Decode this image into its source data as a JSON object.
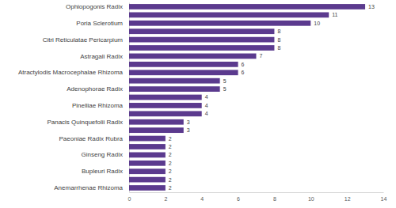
{
  "chart_data": {
    "type": "bar",
    "orientation": "horizontal",
    "data_labels": true,
    "grid": false,
    "color": "#5b3a8e",
    "categories": [
      "Ophiopogonis Radix",
      null,
      "Poria Sclerotium",
      null,
      "Citri Reticulatae Pericarpium",
      null,
      "Astragali Radix",
      null,
      "Atractylodis Macrocephalae Rhizoma",
      null,
      "Adenophorae Radix",
      null,
      "Pinelliae Rhizoma",
      null,
      "Panacis Quinquefolii Radix",
      null,
      "Paeoniae Radix Rubra",
      null,
      "Ginseng Radix",
      null,
      "Bupleuri Radix",
      null,
      "Anemarrhenae Rhizoma"
    ],
    "values": [
      13,
      11,
      10,
      8,
      8,
      8,
      7,
      6,
      6,
      5,
      5,
      4,
      4,
      4,
      3,
      3,
      2,
      2,
      2,
      2,
      2,
      2,
      2
    ],
    "xlim": [
      0,
      14
    ],
    "xticks": [
      0,
      2,
      4,
      6,
      8,
      10,
      12,
      14
    ]
  }
}
